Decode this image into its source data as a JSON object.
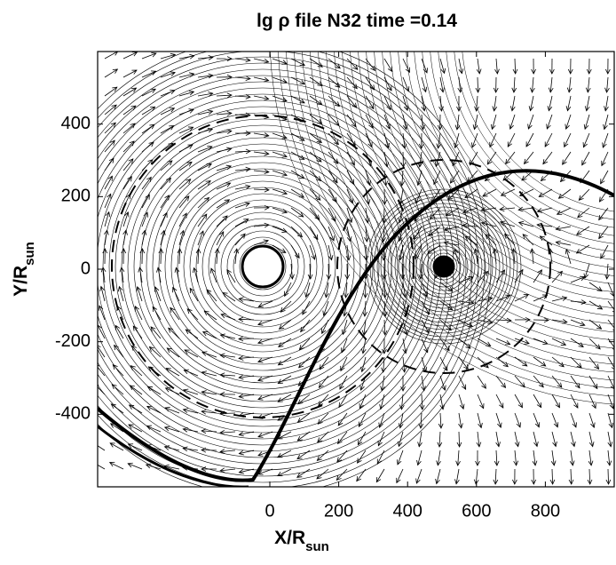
{
  "chart_data": {
    "type": "vector-contour",
    "title": "lg ρ file N32 time =0.14",
    "x_label": "X/R",
    "x_label_sub": "sun",
    "y_label": "Y/R",
    "y_label_sub": "sun",
    "xlim": [
      -500,
      1000
    ],
    "ylim": [
      -600,
      600
    ],
    "xticks": [
      0,
      200,
      400,
      600,
      800
    ],
    "yticks": [
      -400,
      -200,
      0,
      200,
      400
    ],
    "color": "#000000"
  }
}
